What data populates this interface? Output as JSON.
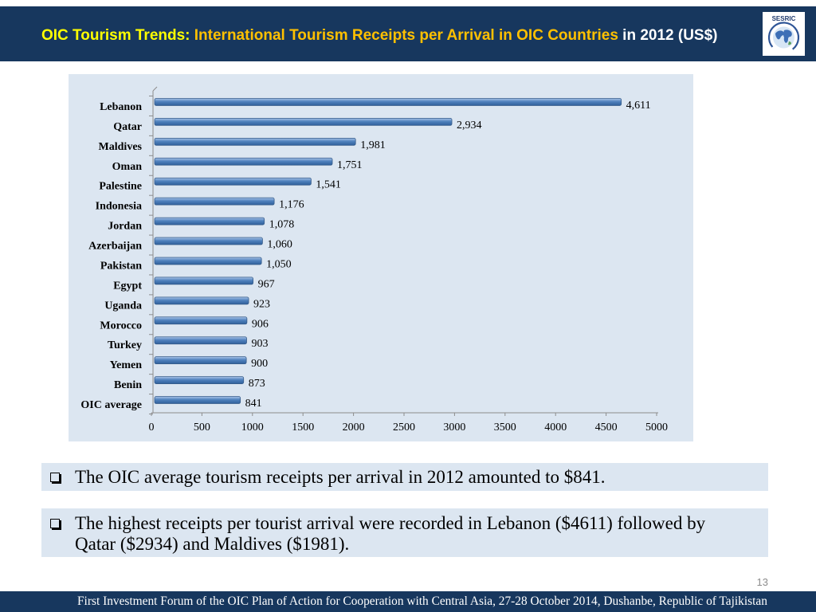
{
  "slide": {
    "title": {
      "lead": "OIC Tourism Trends: ",
      "highlight": "International Tourism Receipts per Arrival in OIC Countries",
      "tail": " in 2012 (US$)"
    },
    "logo": {
      "text": "SESRIC",
      "icon": "globe-icon"
    },
    "page_number": "13",
    "footer": "First Investment Forum of the OIC Plan of Action for Cooperation with Central Asia, 27-28 October 2014, Dushanbe, Republic of Tajikistan"
  },
  "colors": {
    "header_background": "#17375e",
    "title_lead": "#ffff00",
    "title_highlight": "#ffc000",
    "title_tail": "#ffffff",
    "panel_background": "#dce6f1",
    "bar": "#4f81bd"
  },
  "chart_data": {
    "type": "bar",
    "orientation": "horizontal",
    "categories": [
      "Lebanon",
      "Qatar",
      "Maldives",
      "Oman",
      "Palestine",
      "Indonesia",
      "Jordan",
      "Azerbaijan",
      "Pakistan",
      "Egypt",
      "Uganda",
      "Morocco",
      "Turkey",
      "Yemen",
      "Benin",
      "OIC average"
    ],
    "values": [
      4611,
      2934,
      1981,
      1751,
      1541,
      1176,
      1078,
      1060,
      1050,
      967,
      923,
      906,
      903,
      900,
      873,
      841
    ],
    "value_labels": [
      "4,611",
      "2,934",
      "1,981",
      "1,751",
      "1,541",
      "1,176",
      "1,078",
      "1,060",
      "1,050",
      "967",
      "923",
      "906",
      "903",
      "900",
      "873",
      "841"
    ],
    "x_ticks": [
      0,
      500,
      1000,
      1500,
      2000,
      2500,
      3000,
      3500,
      4000,
      4500,
      5000
    ],
    "x_tick_labels": [
      "0",
      "500",
      "1000",
      "1500",
      "2000",
      "2500",
      "3000",
      "3500",
      "4000",
      "4500",
      "5000"
    ],
    "xlim": [
      0,
      5000
    ],
    "grid": false,
    "legend": "none"
  },
  "bullets": [
    {
      "icon": "checkbox-square-icon",
      "text": "The OIC average tourism receipts per arrival in 2012 amounted to $841."
    },
    {
      "icon": "checkbox-square-icon",
      "text": "The highest receipts per tourist arrival were recorded in Lebanon ($4611) followed by Qatar ($2934) and Maldives ($1981)."
    }
  ]
}
